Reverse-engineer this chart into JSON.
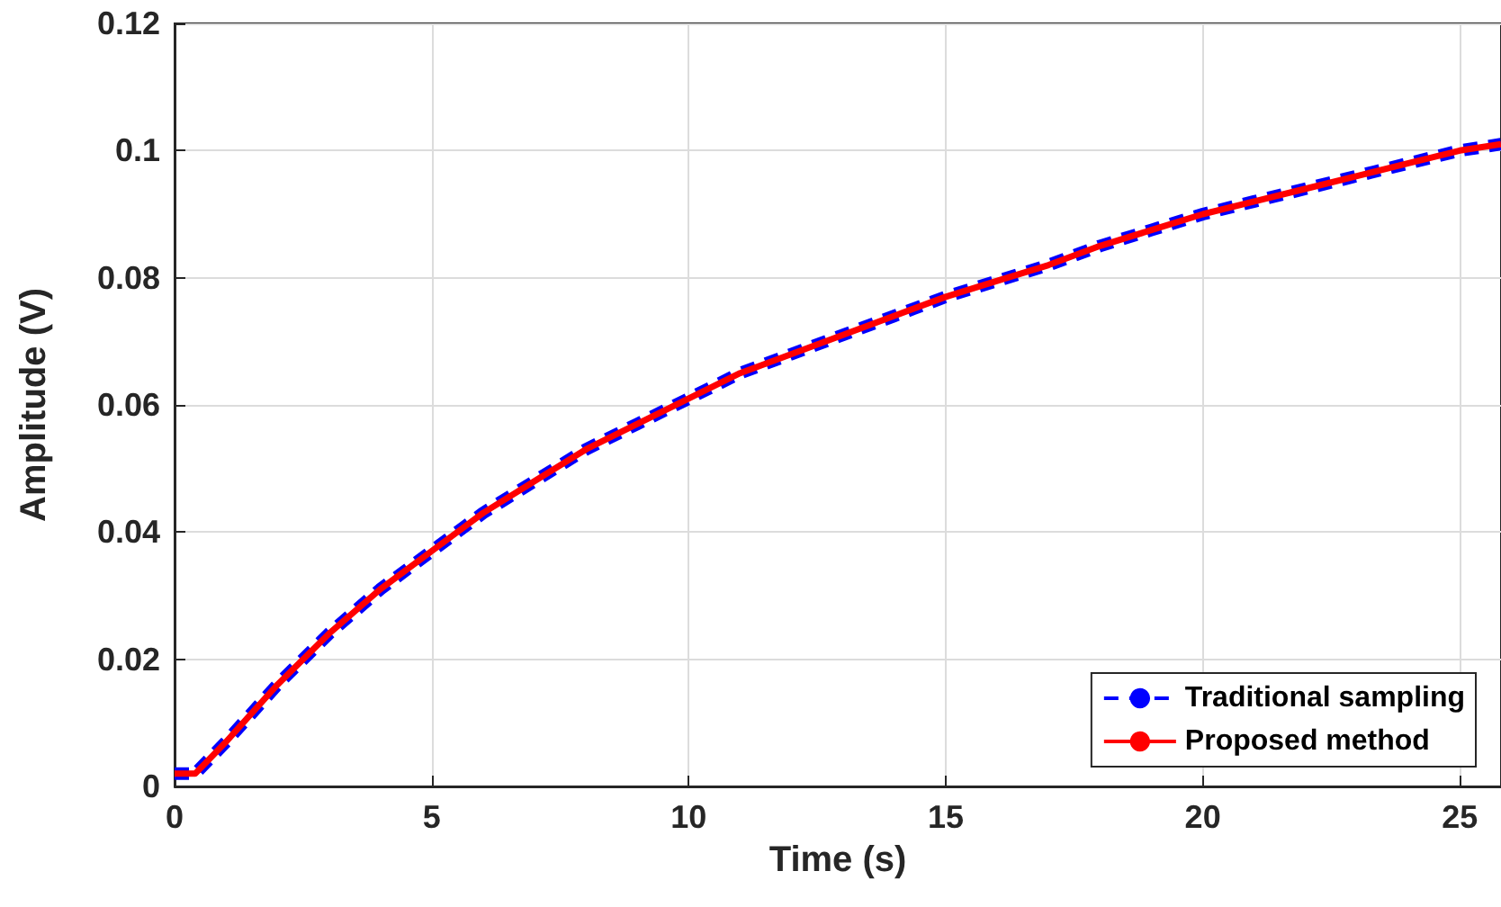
{
  "chart_data": {
    "type": "line",
    "xlabel": "Time (s)",
    "ylabel": "Amplitude (V)",
    "x": [
      0,
      0.4,
      1,
      2,
      3,
      4,
      5,
      6,
      7,
      8,
      9,
      10,
      11,
      12,
      13,
      14,
      15,
      16,
      17,
      18,
      19,
      20,
      21,
      22,
      23,
      24,
      25,
      25.8
    ],
    "series": [
      {
        "name": "Traditional sampling",
        "color": "#0000ff",
        "line_style": "dashed",
        "values": [
          0.002,
          0.002,
          0.007,
          0.016,
          0.024,
          0.031,
          0.037,
          0.043,
          0.048,
          0.053,
          0.057,
          0.061,
          0.065,
          0.068,
          0.071,
          0.074,
          0.077,
          0.0795,
          0.082,
          0.085,
          0.0875,
          0.09,
          0.092,
          0.094,
          0.096,
          0.098,
          0.1,
          0.101
        ]
      },
      {
        "name": "Proposed method",
        "color": "#ff0000",
        "line_style": "solid",
        "values": [
          0.002,
          0.002,
          0.007,
          0.016,
          0.024,
          0.031,
          0.037,
          0.043,
          0.048,
          0.053,
          0.057,
          0.061,
          0.065,
          0.068,
          0.071,
          0.074,
          0.077,
          0.0795,
          0.082,
          0.085,
          0.0875,
          0.09,
          0.092,
          0.094,
          0.096,
          0.098,
          0.1,
          0.101
        ]
      }
    ],
    "xlim": [
      0,
      25.8
    ],
    "xticks": [
      0,
      5,
      10,
      15,
      20,
      25
    ],
    "ylim": [
      0,
      0.12
    ],
    "yticks": [
      0,
      0.02,
      0.04,
      0.06,
      0.08,
      0.1,
      0.12
    ],
    "grid": true,
    "legend": "bottom right",
    "marker": "none"
  }
}
